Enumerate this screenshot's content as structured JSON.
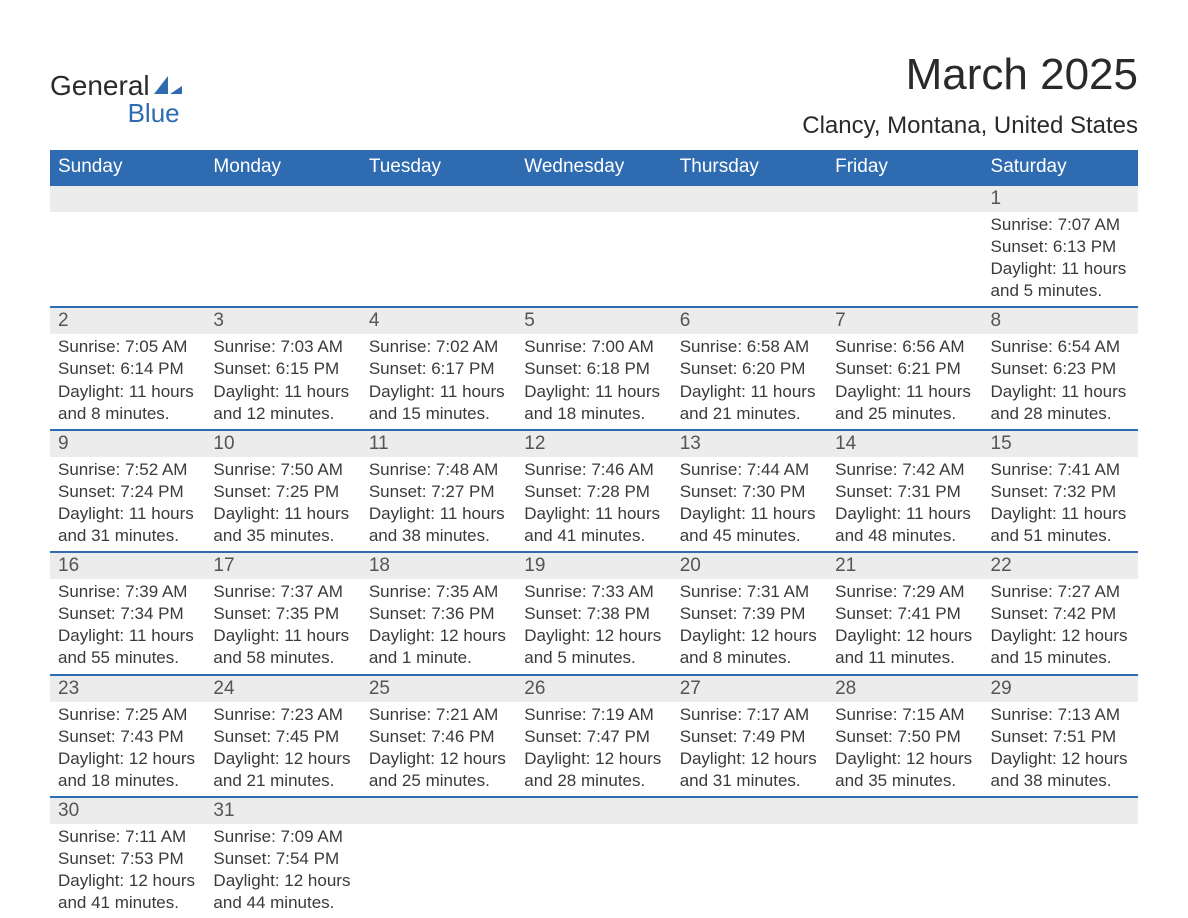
{
  "logo": {
    "line1": "General",
    "line2": "Blue",
    "icon_color": "#2e6bb0"
  },
  "title": "March 2025",
  "subtitle": "Clancy, Montana, United States",
  "colors": {
    "header_bg": "#2e6bb0",
    "header_text": "#ffffff",
    "daynum_bg": "#ececec",
    "row_border": "#2e6bb0",
    "body_text": "#3a3a3a"
  },
  "weekdays": [
    "Sunday",
    "Monday",
    "Tuesday",
    "Wednesday",
    "Thursday",
    "Friday",
    "Saturday"
  ],
  "weeks": [
    [
      null,
      null,
      null,
      null,
      null,
      null,
      {
        "n": "1",
        "sr": "Sunrise: 7:07 AM",
        "ss": "Sunset: 6:13 PM",
        "d1": "Daylight: 11 hours",
        "d2": "and 5 minutes."
      }
    ],
    [
      {
        "n": "2",
        "sr": "Sunrise: 7:05 AM",
        "ss": "Sunset: 6:14 PM",
        "d1": "Daylight: 11 hours",
        "d2": "and 8 minutes."
      },
      {
        "n": "3",
        "sr": "Sunrise: 7:03 AM",
        "ss": "Sunset: 6:15 PM",
        "d1": "Daylight: 11 hours",
        "d2": "and 12 minutes."
      },
      {
        "n": "4",
        "sr": "Sunrise: 7:02 AM",
        "ss": "Sunset: 6:17 PM",
        "d1": "Daylight: 11 hours",
        "d2": "and 15 minutes."
      },
      {
        "n": "5",
        "sr": "Sunrise: 7:00 AM",
        "ss": "Sunset: 6:18 PM",
        "d1": "Daylight: 11 hours",
        "d2": "and 18 minutes."
      },
      {
        "n": "6",
        "sr": "Sunrise: 6:58 AM",
        "ss": "Sunset: 6:20 PM",
        "d1": "Daylight: 11 hours",
        "d2": "and 21 minutes."
      },
      {
        "n": "7",
        "sr": "Sunrise: 6:56 AM",
        "ss": "Sunset: 6:21 PM",
        "d1": "Daylight: 11 hours",
        "d2": "and 25 minutes."
      },
      {
        "n": "8",
        "sr": "Sunrise: 6:54 AM",
        "ss": "Sunset: 6:23 PM",
        "d1": "Daylight: 11 hours",
        "d2": "and 28 minutes."
      }
    ],
    [
      {
        "n": "9",
        "sr": "Sunrise: 7:52 AM",
        "ss": "Sunset: 7:24 PM",
        "d1": "Daylight: 11 hours",
        "d2": "and 31 minutes."
      },
      {
        "n": "10",
        "sr": "Sunrise: 7:50 AM",
        "ss": "Sunset: 7:25 PM",
        "d1": "Daylight: 11 hours",
        "d2": "and 35 minutes."
      },
      {
        "n": "11",
        "sr": "Sunrise: 7:48 AM",
        "ss": "Sunset: 7:27 PM",
        "d1": "Daylight: 11 hours",
        "d2": "and 38 minutes."
      },
      {
        "n": "12",
        "sr": "Sunrise: 7:46 AM",
        "ss": "Sunset: 7:28 PM",
        "d1": "Daylight: 11 hours",
        "d2": "and 41 minutes."
      },
      {
        "n": "13",
        "sr": "Sunrise: 7:44 AM",
        "ss": "Sunset: 7:30 PM",
        "d1": "Daylight: 11 hours",
        "d2": "and 45 minutes."
      },
      {
        "n": "14",
        "sr": "Sunrise: 7:42 AM",
        "ss": "Sunset: 7:31 PM",
        "d1": "Daylight: 11 hours",
        "d2": "and 48 minutes."
      },
      {
        "n": "15",
        "sr": "Sunrise: 7:41 AM",
        "ss": "Sunset: 7:32 PM",
        "d1": "Daylight: 11 hours",
        "d2": "and 51 minutes."
      }
    ],
    [
      {
        "n": "16",
        "sr": "Sunrise: 7:39 AM",
        "ss": "Sunset: 7:34 PM",
        "d1": "Daylight: 11 hours",
        "d2": "and 55 minutes."
      },
      {
        "n": "17",
        "sr": "Sunrise: 7:37 AM",
        "ss": "Sunset: 7:35 PM",
        "d1": "Daylight: 11 hours",
        "d2": "and 58 minutes."
      },
      {
        "n": "18",
        "sr": "Sunrise: 7:35 AM",
        "ss": "Sunset: 7:36 PM",
        "d1": "Daylight: 12 hours",
        "d2": "and 1 minute."
      },
      {
        "n": "19",
        "sr": "Sunrise: 7:33 AM",
        "ss": "Sunset: 7:38 PM",
        "d1": "Daylight: 12 hours",
        "d2": "and 5 minutes."
      },
      {
        "n": "20",
        "sr": "Sunrise: 7:31 AM",
        "ss": "Sunset: 7:39 PM",
        "d1": "Daylight: 12 hours",
        "d2": "and 8 minutes."
      },
      {
        "n": "21",
        "sr": "Sunrise: 7:29 AM",
        "ss": "Sunset: 7:41 PM",
        "d1": "Daylight: 12 hours",
        "d2": "and 11 minutes."
      },
      {
        "n": "22",
        "sr": "Sunrise: 7:27 AM",
        "ss": "Sunset: 7:42 PM",
        "d1": "Daylight: 12 hours",
        "d2": "and 15 minutes."
      }
    ],
    [
      {
        "n": "23",
        "sr": "Sunrise: 7:25 AM",
        "ss": "Sunset: 7:43 PM",
        "d1": "Daylight: 12 hours",
        "d2": "and 18 minutes."
      },
      {
        "n": "24",
        "sr": "Sunrise: 7:23 AM",
        "ss": "Sunset: 7:45 PM",
        "d1": "Daylight: 12 hours",
        "d2": "and 21 minutes."
      },
      {
        "n": "25",
        "sr": "Sunrise: 7:21 AM",
        "ss": "Sunset: 7:46 PM",
        "d1": "Daylight: 12 hours",
        "d2": "and 25 minutes."
      },
      {
        "n": "26",
        "sr": "Sunrise: 7:19 AM",
        "ss": "Sunset: 7:47 PM",
        "d1": "Daylight: 12 hours",
        "d2": "and 28 minutes."
      },
      {
        "n": "27",
        "sr": "Sunrise: 7:17 AM",
        "ss": "Sunset: 7:49 PM",
        "d1": "Daylight: 12 hours",
        "d2": "and 31 minutes."
      },
      {
        "n": "28",
        "sr": "Sunrise: 7:15 AM",
        "ss": "Sunset: 7:50 PM",
        "d1": "Daylight: 12 hours",
        "d2": "and 35 minutes."
      },
      {
        "n": "29",
        "sr": "Sunrise: 7:13 AM",
        "ss": "Sunset: 7:51 PM",
        "d1": "Daylight: 12 hours",
        "d2": "and 38 minutes."
      }
    ],
    [
      {
        "n": "30",
        "sr": "Sunrise: 7:11 AM",
        "ss": "Sunset: 7:53 PM",
        "d1": "Daylight: 12 hours",
        "d2": "and 41 minutes."
      },
      {
        "n": "31",
        "sr": "Sunrise: 7:09 AM",
        "ss": "Sunset: 7:54 PM",
        "d1": "Daylight: 12 hours",
        "d2": "and 44 minutes."
      },
      null,
      null,
      null,
      null,
      null
    ]
  ]
}
